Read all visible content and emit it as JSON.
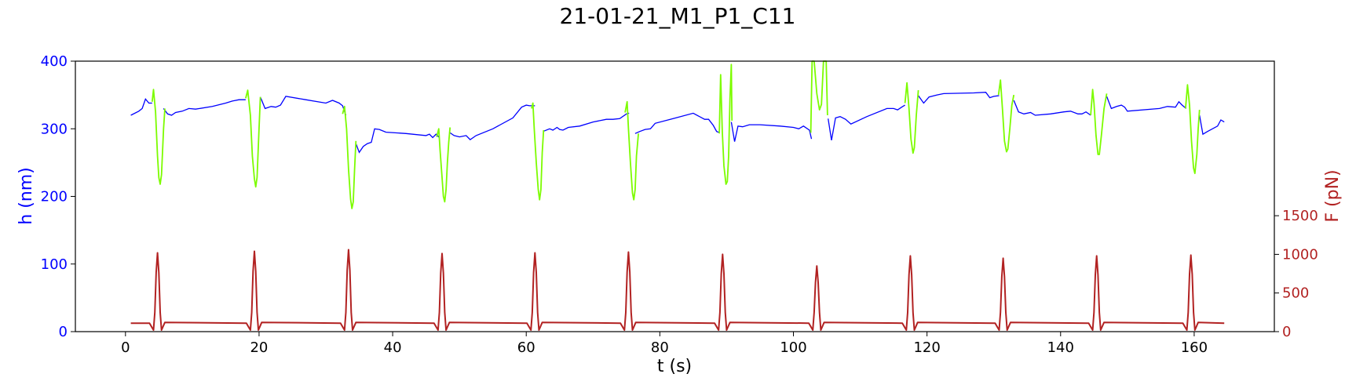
{
  "chart_data": {
    "type": "line",
    "title": "21-01-21_M1_P1_C11",
    "xlabel": "t (s)",
    "ylabel_left": "h (nm)",
    "ylabel_right": "F (pN)",
    "xlim": [
      -7.5,
      172
    ],
    "ylim_left": [
      0,
      400
    ],
    "ylim_right": [
      0,
      3500
    ],
    "x_ticks": [
      0,
      20,
      40,
      60,
      80,
      100,
      120,
      140,
      160
    ],
    "y_ticks_left": [
      0,
      100,
      200,
      300,
      400
    ],
    "y_ticks_right": [
      0,
      500,
      1000,
      1500
    ],
    "colors": {
      "height": "#0000ff",
      "compression": "#7cfc00",
      "force": "#b22222",
      "left_axis": "#0000ff",
      "right_axis": "#b22222"
    },
    "height_segments": [
      [
        [
          0.8,
          320
        ],
        [
          2,
          326
        ],
        [
          2.5,
          330
        ],
        [
          3,
          344
        ],
        [
          3.5,
          338
        ],
        [
          4,
          338
        ]
      ],
      [
        [
          5.7,
          330
        ],
        [
          6.3,
          322
        ],
        [
          6.9,
          320
        ],
        [
          7.5,
          324
        ],
        [
          8.5,
          326
        ],
        [
          9.5,
          330
        ],
        [
          10.5,
          329
        ],
        [
          13,
          333
        ],
        [
          15,
          338
        ],
        [
          16,
          341
        ],
        [
          17,
          343
        ],
        [
          18,
          343
        ]
      ],
      [
        [
          20.2,
          347
        ],
        [
          20.9,
          330
        ],
        [
          21.8,
          333
        ],
        [
          22.5,
          332
        ],
        [
          23.2,
          335
        ],
        [
          24,
          348
        ],
        [
          27,
          343
        ],
        [
          30,
          338
        ],
        [
          31,
          342
        ],
        [
          32,
          338
        ],
        [
          32.5,
          334
        ],
        [
          33,
          320
        ]
      ],
      [
        [
          34.5,
          278
        ],
        [
          35,
          265
        ],
        [
          35.6,
          274
        ],
        [
          36.2,
          278
        ],
        [
          36.8,
          280
        ],
        [
          37.3,
          300
        ],
        [
          38,
          299
        ],
        [
          39,
          295
        ],
        [
          42,
          293
        ],
        [
          45,
          290
        ],
        [
          45.5,
          292
        ],
        [
          46,
          287
        ],
        [
          46.5,
          292
        ],
        [
          47,
          287
        ]
      ],
      [
        [
          48.6,
          294
        ],
        [
          49.2,
          290
        ],
        [
          50,
          288
        ],
        [
          51,
          290
        ],
        [
          51.6,
          284
        ],
        [
          52.5,
          290
        ],
        [
          55,
          300
        ],
        [
          58,
          316
        ],
        [
          59.3,
          332
        ],
        [
          60,
          335
        ],
        [
          60.5,
          334
        ],
        [
          61.3,
          334
        ]
      ],
      [
        [
          62.5,
          296
        ],
        [
          63.5,
          300
        ],
        [
          64,
          298
        ],
        [
          64.6,
          302
        ],
        [
          65,
          299
        ],
        [
          65.5,
          298
        ],
        [
          66.3,
          302
        ],
        [
          68,
          304
        ],
        [
          70,
          310
        ],
        [
          72,
          314
        ],
        [
          73,
          314
        ],
        [
          74,
          315
        ],
        [
          75,
          322
        ],
        [
          75.4,
          323
        ]
      ],
      [
        [
          76.3,
          293
        ],
        [
          77,
          296
        ],
        [
          77.8,
          299
        ],
        [
          78.6,
          300
        ],
        [
          79.3,
          308
        ],
        [
          82,
          315
        ],
        [
          85,
          323
        ],
        [
          86.7,
          314
        ],
        [
          87.3,
          314
        ],
        [
          88,
          305
        ],
        [
          88.5,
          296
        ],
        [
          89,
          294
        ]
      ],
      [
        [
          90.7,
          310
        ],
        [
          91.2,
          281
        ],
        [
          91.7,
          304
        ],
        [
          92.4,
          303
        ],
        [
          93.4,
          306
        ],
        [
          95,
          306
        ],
        [
          98,
          304
        ],
        [
          100,
          302
        ],
        [
          100.8,
          300
        ],
        [
          101.5,
          304
        ],
        [
          102.4,
          298
        ],
        [
          102.7,
          285
        ]
      ],
      [
        [
          105.2,
          315
        ],
        [
          105.7,
          283
        ],
        [
          106.3,
          316
        ],
        [
          107,
          318
        ],
        [
          107.8,
          314
        ],
        [
          108.6,
          307
        ],
        [
          111,
          318
        ],
        [
          114,
          330
        ],
        [
          115,
          330
        ],
        [
          115.6,
          328
        ],
        [
          116.2,
          332
        ],
        [
          116.7,
          335
        ]
      ],
      [
        [
          118.7,
          349
        ],
        [
          119.5,
          338
        ],
        [
          120.3,
          347
        ],
        [
          121.5,
          350
        ],
        [
          122.5,
          352
        ],
        [
          127,
          353
        ],
        [
          128.8,
          354
        ],
        [
          129.4,
          346
        ],
        [
          130,
          348
        ],
        [
          130.8,
          349
        ]
      ],
      [
        [
          133,
          342
        ],
        [
          133.7,
          325
        ],
        [
          134.5,
          322
        ],
        [
          135.5,
          324
        ],
        [
          136.2,
          320
        ],
        [
          138.5,
          322
        ],
        [
          140.5,
          325
        ],
        [
          141.5,
          326
        ],
        [
          142.6,
          322
        ],
        [
          143.2,
          322
        ],
        [
          143.8,
          325
        ],
        [
          144.5,
          320
        ]
      ],
      [
        [
          146.9,
          348
        ],
        [
          147.6,
          330
        ],
        [
          148.4,
          333
        ],
        [
          149.1,
          335
        ],
        [
          149.6,
          332
        ],
        [
          150,
          326
        ],
        [
          154.8,
          330
        ],
        [
          156,
          333
        ],
        [
          157.2,
          332
        ],
        [
          157.7,
          340
        ],
        [
          158.2,
          335
        ],
        [
          158.8,
          330
        ]
      ],
      [
        [
          160.8,
          320
        ],
        [
          161.3,
          292
        ],
        [
          162,
          296
        ],
        [
          163.5,
          304
        ],
        [
          164,
          313
        ],
        [
          164.5,
          310
        ]
      ]
    ],
    "compression_segments": [
      [
        [
          4,
          340
        ],
        [
          4.2,
          358
        ],
        [
          4.5,
          325
        ],
        [
          4.8,
          260
        ],
        [
          5,
          228
        ],
        [
          5.2,
          218
        ],
        [
          5.4,
          232
        ],
        [
          5.7,
          300
        ],
        [
          5.9,
          330
        ]
      ],
      [
        [
          18,
          345
        ],
        [
          18.3,
          357
        ],
        [
          18.7,
          320
        ],
        [
          19,
          260
        ],
        [
          19.3,
          226
        ],
        [
          19.5,
          214
        ],
        [
          19.7,
          228
        ],
        [
          20,
          300
        ],
        [
          20.2,
          347
        ]
      ],
      [
        [
          32.5,
          322
        ],
        [
          32.8,
          333
        ],
        [
          33.1,
          300
        ],
        [
          33.4,
          240
        ],
        [
          33.7,
          196
        ],
        [
          33.9,
          182
        ],
        [
          34.1,
          192
        ],
        [
          34.3,
          240
        ],
        [
          34.5,
          282
        ]
      ],
      [
        [
          46.6,
          288
        ],
        [
          46.9,
          300
        ],
        [
          47.1,
          268
        ],
        [
          47.4,
          228
        ],
        [
          47.6,
          200
        ],
        [
          47.8,
          192
        ],
        [
          48.0,
          210
        ],
        [
          48.2,
          250
        ],
        [
          48.4,
          280
        ],
        [
          48.6,
          302
        ]
      ],
      [
        [
          60.8,
          330
        ],
        [
          61.0,
          338
        ],
        [
          61.2,
          300
        ],
        [
          61.5,
          250
        ],
        [
          61.8,
          210
        ],
        [
          62.0,
          195
        ],
        [
          62.2,
          210
        ],
        [
          62.4,
          265
        ],
        [
          62.6,
          298
        ]
      ],
      [
        [
          74.8,
          324
        ],
        [
          75.1,
          340
        ],
        [
          75.3,
          300
        ],
        [
          75.6,
          250
        ],
        [
          75.9,
          205
        ],
        [
          76.1,
          195
        ],
        [
          76.3,
          210
        ],
        [
          76.5,
          260
        ],
        [
          76.8,
          293
        ]
      ],
      [
        [
          88.9,
          293
        ],
        [
          89.1,
          380
        ],
        [
          89.35,
          296
        ],
        [
          89.6,
          245
        ],
        [
          89.9,
          218
        ],
        [
          90.1,
          222
        ],
        [
          90.3,
          260
        ],
        [
          90.5,
          345
        ],
        [
          90.7,
          395
        ],
        [
          90.8,
          312
        ]
      ],
      [
        [
          102.6,
          294
        ],
        [
          102.8,
          400
        ],
        [
          103.1,
          400
        ],
        [
          103.5,
          352
        ],
        [
          103.9,
          328
        ],
        [
          104.2,
          336
        ],
        [
          104.5,
          400
        ],
        [
          104.9,
          400
        ],
        [
          105.1,
          320
        ]
      ],
      [
        [
          116.7,
          338
        ],
        [
          117,
          368
        ],
        [
          117.3,
          330
        ],
        [
          117.6,
          285
        ],
        [
          117.9,
          264
        ],
        [
          118.1,
          272
        ],
        [
          118.4,
          320
        ],
        [
          118.7,
          357
        ]
      ],
      [
        [
          130.7,
          350
        ],
        [
          131,
          372
        ],
        [
          131.3,
          328
        ],
        [
          131.6,
          282
        ],
        [
          131.9,
          266
        ],
        [
          132.1,
          270
        ],
        [
          132.4,
          300
        ],
        [
          132.7,
          335
        ],
        [
          133,
          350
        ]
      ],
      [
        [
          144.5,
          320
        ],
        [
          144.8,
          358
        ],
        [
          145,
          338
        ],
        [
          145.3,
          290
        ],
        [
          145.6,
          262
        ],
        [
          145.8,
          262
        ],
        [
          146.1,
          290
        ],
        [
          146.5,
          330
        ],
        [
          146.9,
          352
        ]
      ],
      [
        [
          158.7,
          330
        ],
        [
          159,
          365
        ],
        [
          159.3,
          335
        ],
        [
          159.6,
          282
        ],
        [
          159.9,
          242
        ],
        [
          160.1,
          234
        ],
        [
          160.4,
          262
        ],
        [
          160.6,
          300
        ],
        [
          160.8,
          328
        ]
      ]
    ],
    "force_pulses": [
      {
        "t": 4.8,
        "peak": 1020
      },
      {
        "t": 19.3,
        "peak": 1040
      },
      {
        "t": 33.4,
        "peak": 1060
      },
      {
        "t": 47.4,
        "peak": 1010
      },
      {
        "t": 61.3,
        "peak": 1020
      },
      {
        "t": 75.3,
        "peak": 1030
      },
      {
        "t": 89.4,
        "peak": 1000
      },
      {
        "t": 103.5,
        "peak": 850
      },
      {
        "t": 117.5,
        "peak": 980
      },
      {
        "t": 131.4,
        "peak": 950
      },
      {
        "t": 145.4,
        "peak": 980
      },
      {
        "t": 159.5,
        "peak": 990
      }
    ],
    "force_baseline": 110,
    "force_t_range": [
      0.8,
      164.5
    ]
  }
}
